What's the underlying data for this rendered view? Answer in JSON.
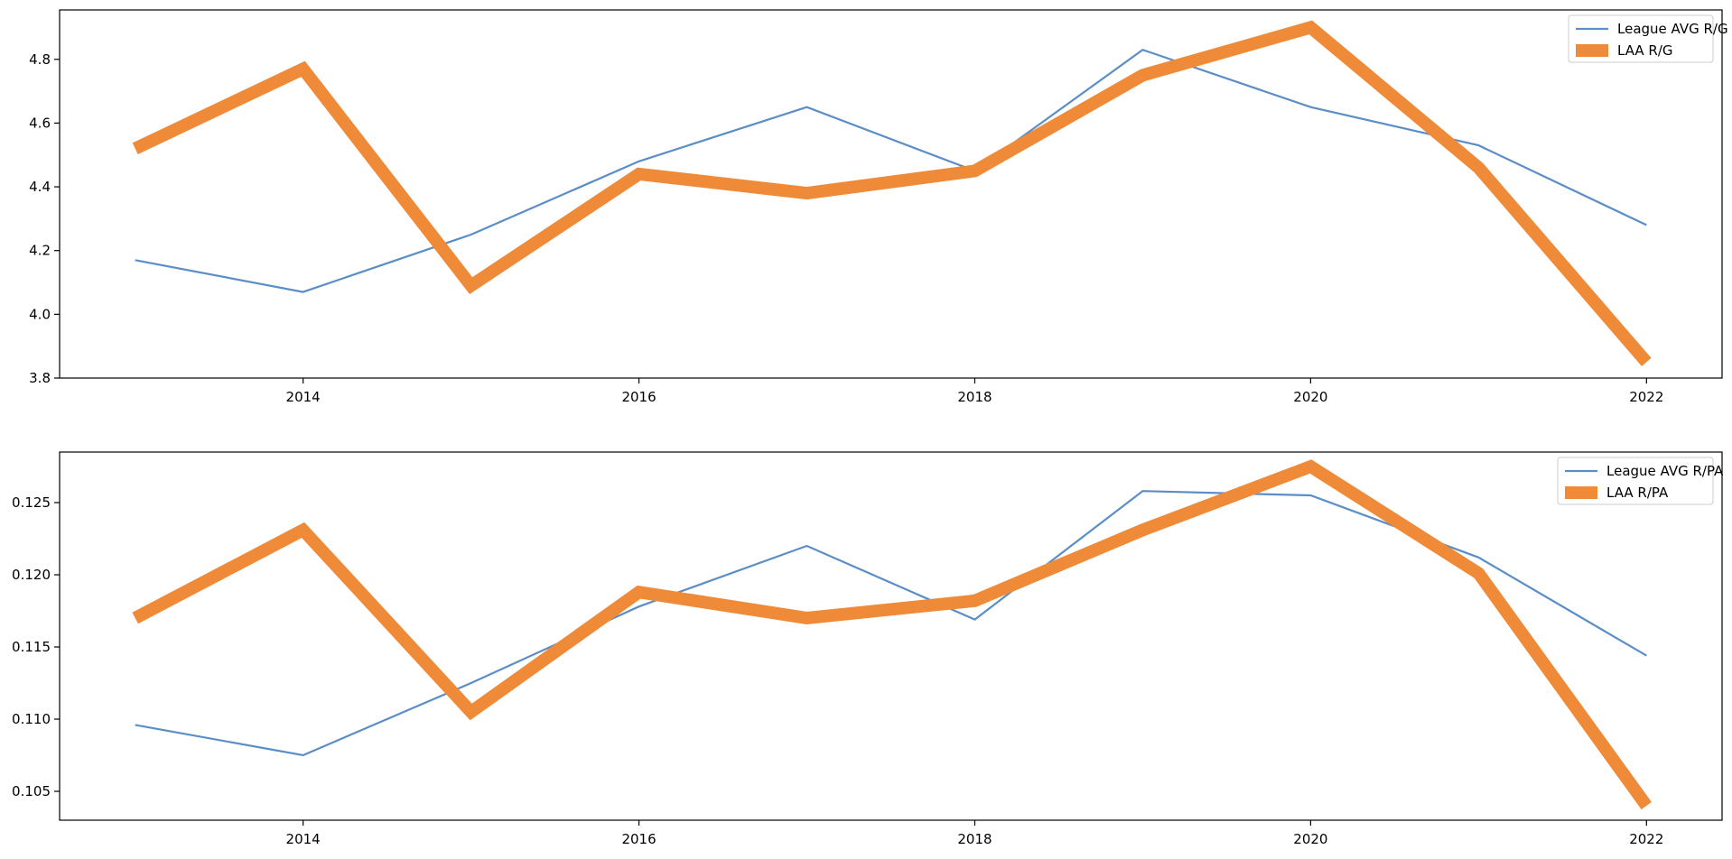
{
  "chart_data": [
    {
      "type": "line",
      "x": [
        2013,
        2014,
        2015,
        2016,
        2017,
        2018,
        2019,
        2020,
        2021,
        2022
      ],
      "series": [
        {
          "name": "League AVG R/G",
          "color": "#5b8ec6",
          "style": "thin",
          "values": [
            4.17,
            4.07,
            4.25,
            4.48,
            4.65,
            4.45,
            4.83,
            4.65,
            4.53,
            4.28
          ]
        },
        {
          "name": "LAA R/G",
          "color": "#ef8a38",
          "style": "thick",
          "values": [
            4.52,
            4.77,
            4.09,
            4.44,
            4.38,
            4.45,
            4.75,
            4.9,
            4.46,
            3.85
          ]
        }
      ],
      "xticks": [
        2014,
        2016,
        2018,
        2020,
        2022
      ],
      "xtick_labels": [
        "2014",
        "2016",
        "2018",
        "2020",
        "2022"
      ],
      "yticks": [
        3.8,
        4.0,
        4.2,
        4.4,
        4.6,
        4.8
      ],
      "ytick_labels": [
        "3.8",
        "4.0",
        "4.2",
        "4.4",
        "4.6",
        "4.8"
      ],
      "xlim": [
        2012.55,
        2022.45
      ],
      "ylim": [
        3.8,
        4.955
      ],
      "legend": "top-right",
      "grid": false
    },
    {
      "type": "line",
      "x": [
        2013,
        2014,
        2015,
        2016,
        2017,
        2018,
        2019,
        2020,
        2021,
        2022
      ],
      "series": [
        {
          "name": "League AVG R/PA",
          "color": "#5b8ec6",
          "style": "thin",
          "values": [
            0.1096,
            0.1075,
            0.1125,
            0.1178,
            0.122,
            0.1169,
            0.1258,
            0.1255,
            0.1212,
            0.1144
          ]
        },
        {
          "name": "LAA R/PA",
          "color": "#ef8a38",
          "style": "thick",
          "values": [
            0.117,
            0.1231,
            0.1105,
            0.1188,
            0.117,
            0.1182,
            0.1231,
            0.1275,
            0.1201,
            0.104
          ]
        }
      ],
      "xticks": [
        2014,
        2016,
        2018,
        2020,
        2022
      ],
      "xtick_labels": [
        "2014",
        "2016",
        "2018",
        "2020",
        "2022"
      ],
      "yticks": [
        0.105,
        0.11,
        0.115,
        0.12,
        0.125
      ],
      "ytick_labels": [
        "0.105",
        "0.110",
        "0.115",
        "0.120",
        "0.125"
      ],
      "xlim": [
        2012.55,
        2022.45
      ],
      "ylim": [
        0.103,
        0.1285
      ],
      "legend": "top-right",
      "grid": false
    }
  ]
}
